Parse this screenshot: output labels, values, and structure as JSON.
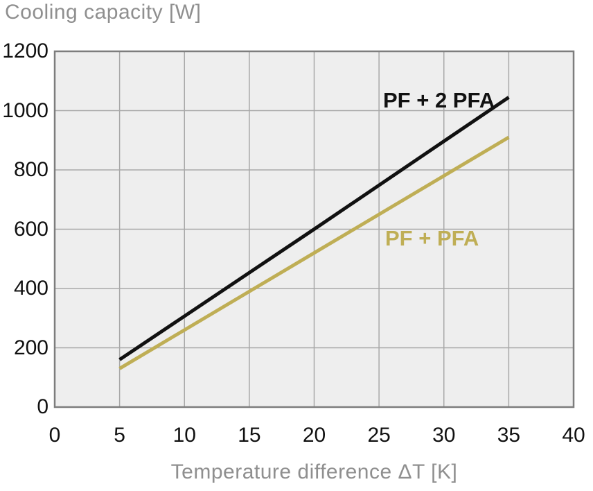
{
  "chart_data": {
    "type": "line",
    "title": "Cooling capacity [W]",
    "xlabel": "Temperature difference ΔT [K]",
    "ylabel": "Cooling capacity [W]",
    "xlim": [
      0,
      40
    ],
    "ylim": [
      0,
      1200
    ],
    "x_ticks": [
      0,
      5,
      10,
      15,
      20,
      25,
      30,
      35,
      40
    ],
    "y_ticks": [
      0,
      200,
      400,
      600,
      800,
      1000,
      1200
    ],
    "grid": true,
    "legend_position": "inline-labels-on-plot",
    "series": [
      {
        "name": "PF + 2 PFA",
        "color": "#111111",
        "x": [
          5,
          20,
          35
        ],
        "values": [
          160,
          600,
          1045
        ]
      },
      {
        "name": "PF + PFA",
        "color": "#bfae55",
        "x": [
          5,
          20,
          35
        ],
        "values": [
          130,
          520,
          910
        ]
      }
    ]
  },
  "colors": {
    "plot_background": "#eeeeee",
    "gridline": "#a8a8a8",
    "plot_border": "#7d7d7d",
    "tick_label": "#111111",
    "title_text": "#8f8f8f",
    "axis_label_text": "#8f8f8f"
  }
}
